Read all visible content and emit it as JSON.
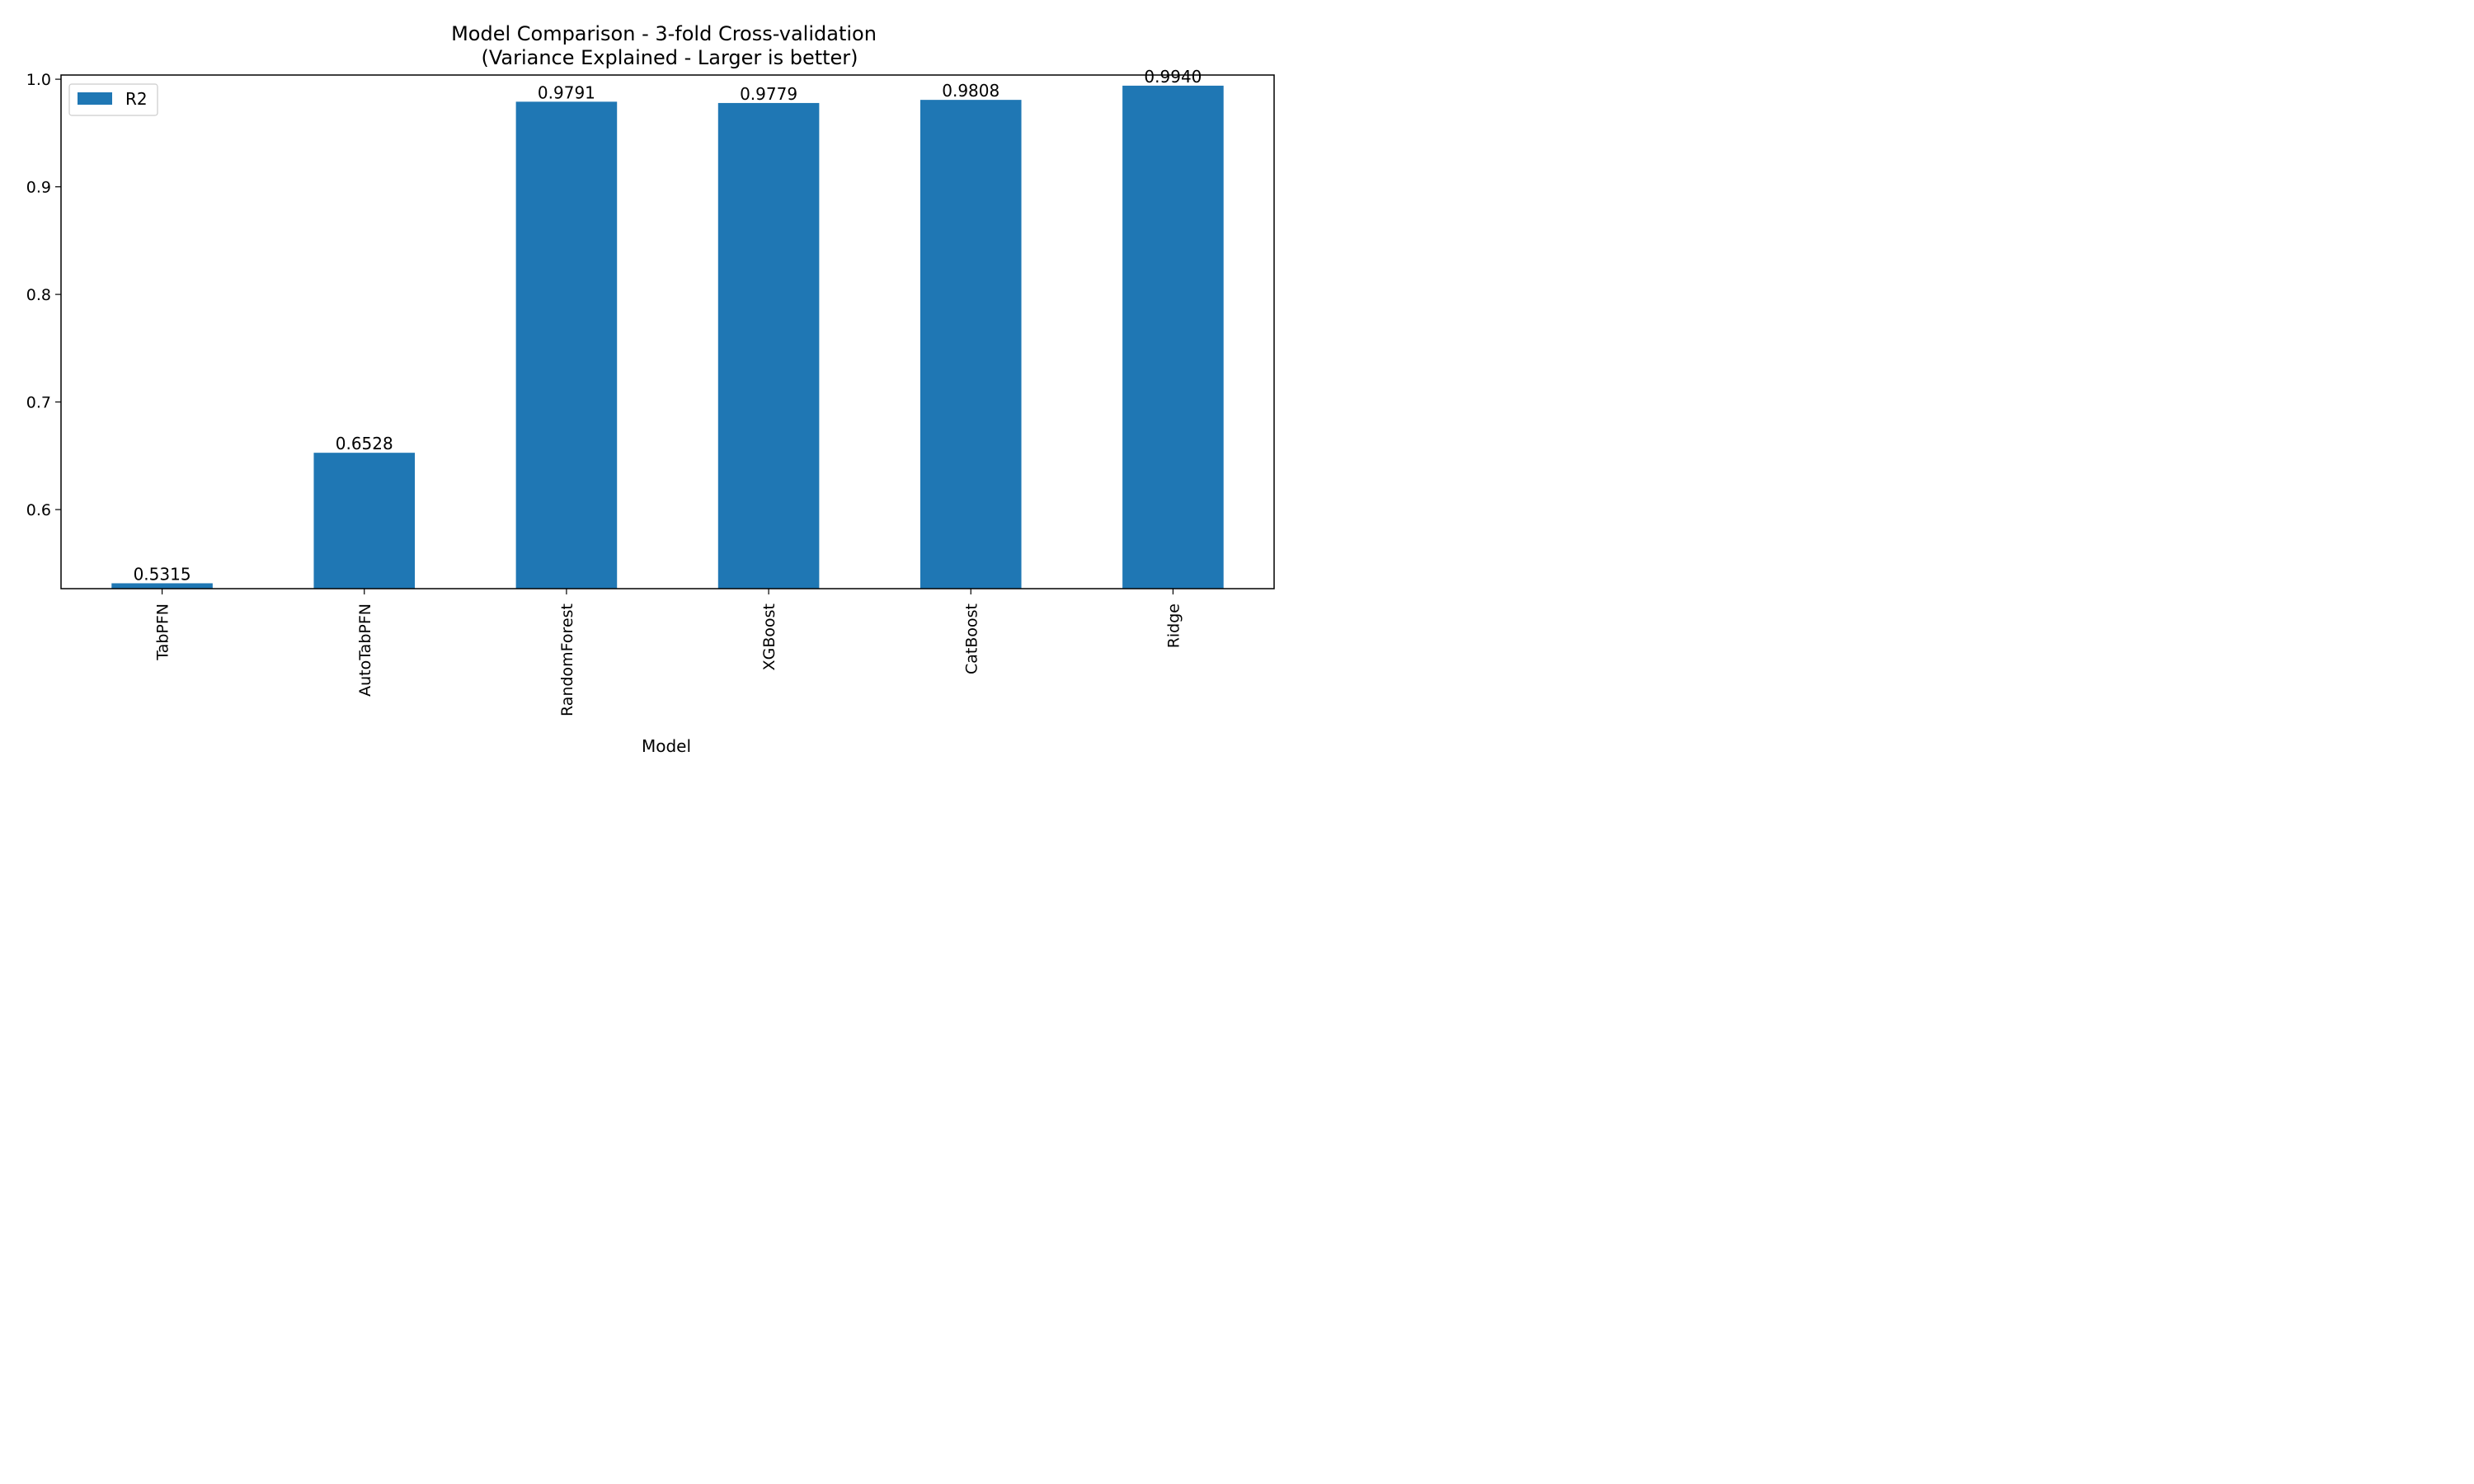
{
  "chart_data": {
    "type": "bar",
    "title": "Model Comparison - 3-fold Cross-validation",
    "subtitle": "(Variance Explained - Larger is better)",
    "xlabel": "Model",
    "ylabel": "",
    "categories": [
      "TabPFN",
      "AutoTabPFN",
      "RandomForest",
      "XGBoost",
      "CatBoost",
      "Ridge"
    ],
    "series": [
      {
        "name": "R2",
        "values": [
          0.5315,
          0.6528,
          0.9791,
          0.9779,
          0.9808,
          0.994
        ],
        "color": "#1f77b4"
      }
    ],
    "data_labels": [
      "0.5315",
      "0.6528",
      "0.9791",
      "0.9779",
      "0.9808",
      "0.9940"
    ],
    "yticks": [
      "0.6",
      "0.7",
      "0.8",
      "0.9",
      "1.0"
    ],
    "ylim": [
      0.5265,
      1.0039
    ],
    "grid": false,
    "legend": "top-left",
    "x_tick_rotation": "vertical"
  }
}
